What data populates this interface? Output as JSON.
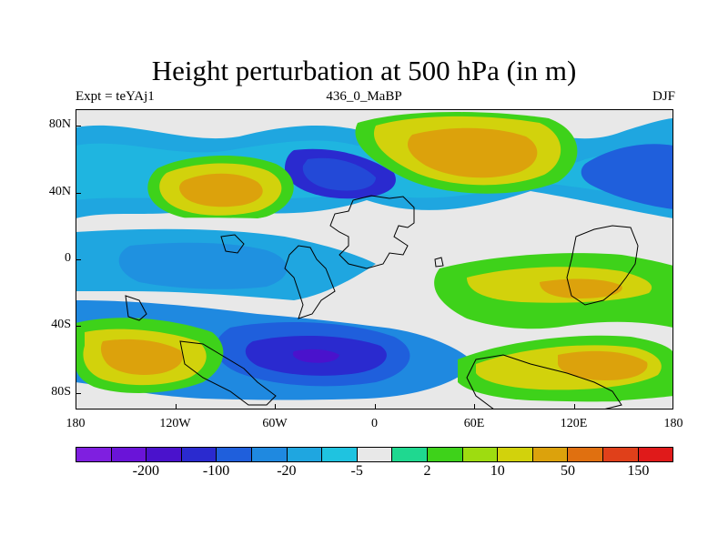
{
  "title": "Height perturbation at 500 hPa (in m)",
  "subtitle_left": "Expt = teYAj1",
  "subtitle_center": "436_0_MaBP",
  "subtitle_right": "DJF",
  "map": {
    "projection": "cylindrical equidistant",
    "lon_range": [
      -180,
      180
    ],
    "lat_range": [
      -90,
      90
    ],
    "x_ticks": [
      {
        "lon": -180,
        "label": "180"
      },
      {
        "lon": -120,
        "label": "120W"
      },
      {
        "lon": -60,
        "label": "60W"
      },
      {
        "lon": 0,
        "label": "0"
      },
      {
        "lon": 60,
        "label": "60E"
      },
      {
        "lon": 120,
        "label": "120E"
      },
      {
        "lon": 180,
        "label": "180"
      }
    ],
    "y_ticks": [
      {
        "lat": 80,
        "label": "80N"
      },
      {
        "lat": 40,
        "label": "40N"
      },
      {
        "lat": 0,
        "label": "0"
      },
      {
        "lat": -40,
        "label": "40S"
      },
      {
        "lat": -80,
        "label": "80S"
      }
    ],
    "coastlines": "paleogeography outlines (black)"
  },
  "colorbar": {
    "colors": [
      "#7f1fe0",
      "#6a14d8",
      "#4a12cc",
      "#2a2acf",
      "#1f5fdc",
      "#1f89e0",
      "#1fa6e0",
      "#1fc3e0",
      "#e8e8e8",
      "#1fd890",
      "#3ed21a",
      "#9edc10",
      "#d2d20c",
      "#dca20c",
      "#e07010",
      "#e0401a",
      "#e01a1a"
    ],
    "labels": [
      {
        "text": "-200",
        "after_index": 1
      },
      {
        "text": "-100",
        "after_index": 3
      },
      {
        "text": "-20",
        "after_index": 5
      },
      {
        "text": "-5",
        "after_index": 7
      },
      {
        "text": "2",
        "after_index": 9
      },
      {
        "text": "10",
        "after_index": 11
      },
      {
        "text": "50",
        "after_index": 13
      },
      {
        "text": "150",
        "after_index": 15
      }
    ]
  }
}
